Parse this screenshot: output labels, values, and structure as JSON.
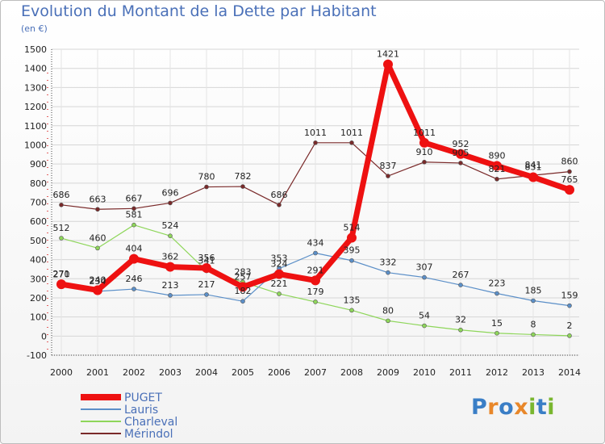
{
  "title": "Evolution du Montant de la Dette par Habitant",
  "subtitle": "(en €)",
  "logo": {
    "text": "Proxiti",
    "colors": [
      "#3a7ec6",
      "#e8872a",
      "#3a7ec6",
      "#e8872a",
      "#79b62f",
      "#3a7ec6",
      "#79b62f"
    ]
  },
  "chart_data": {
    "type": "line",
    "title": "Evolution du Montant de la Dette par Habitant",
    "subtitle": "(en €)",
    "x": [
      2000,
      2001,
      2002,
      2003,
      2004,
      2005,
      2006,
      2007,
      2008,
      2009,
      2010,
      2011,
      2012,
      2013,
      2014
    ],
    "ylim": [
      -100,
      1500
    ],
    "yticks": [
      -100,
      0,
      100,
      200,
      300,
      400,
      500,
      600,
      700,
      800,
      900,
      1000,
      1100,
      1200,
      1300,
      1400,
      1500
    ],
    "grid": true,
    "legend_position": "bottom-left",
    "series": [
      {
        "name": "Mérindol",
        "color": "#7a2a2a",
        "width": 1.2,
        "marker": 5,
        "values": [
          686,
          663,
          667,
          696,
          780,
          782,
          686,
          1011,
          1011,
          837,
          910,
          905,
          821,
          841,
          860
        ]
      },
      {
        "name": "Charleval",
        "color": "#8ed65a",
        "width": 1.2,
        "marker": 5,
        "values": [
          512,
          460,
          581,
          524,
          341,
          283,
          221,
          179,
          135,
          80,
          54,
          32,
          15,
          8,
          2
        ]
      },
      {
        "name": "Lauris",
        "color": "#5b8fc8",
        "width": 1.2,
        "marker": 5,
        "values": [
          270,
          234,
          246,
          213,
          217,
          182,
          353,
          434,
          395,
          332,
          307,
          267,
          223,
          185,
          159
        ]
      },
      {
        "name": "PUGET",
        "color": "#ee1111",
        "width": 7,
        "marker": 12,
        "values": [
          271,
          240,
          404,
          362,
          356,
          257,
          324,
          291,
          514,
          1421,
          1011,
          952,
          890,
          831,
          765
        ]
      }
    ],
    "legend_order": [
      "PUGET",
      "Lauris",
      "Charleval",
      "Mérindol"
    ]
  }
}
